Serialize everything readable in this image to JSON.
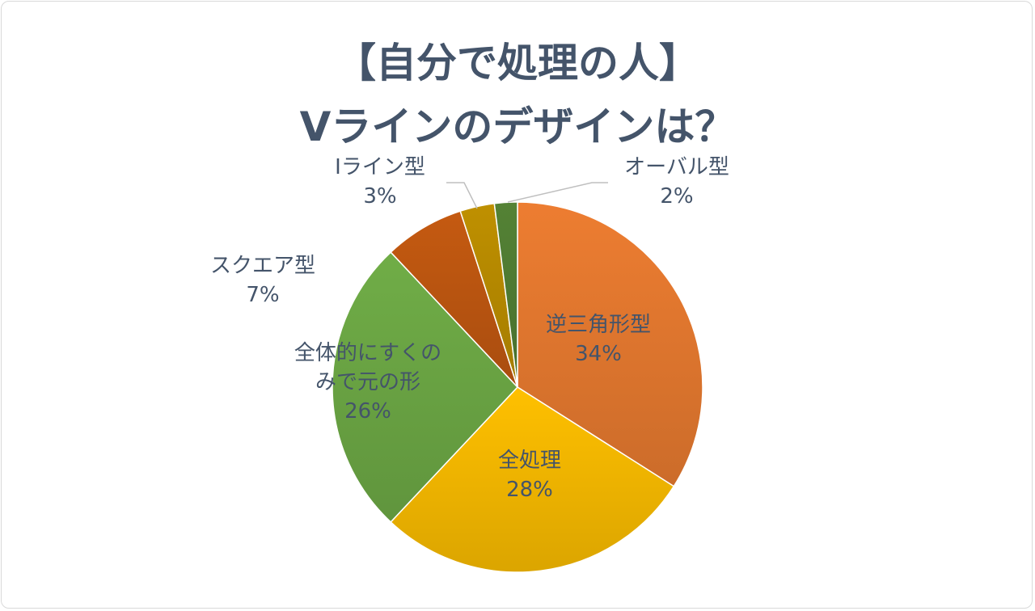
{
  "chart_data": {
    "type": "pie",
    "title_lines": [
      "【自分で処理の人】",
      "Vラインのデザインは？"
    ],
    "slices": [
      {
        "label_lines": [
          "逆三角形型"
        ],
        "value": 34,
        "value_label": "34%",
        "color": "#ed7d31"
      },
      {
        "label_lines": [
          "全処理"
        ],
        "value": 28,
        "value_label": "28%",
        "color": "#ffc000"
      },
      {
        "label_lines": [
          "全体的にすくの",
          "みで元の形"
        ],
        "value": 26,
        "value_label": "26%",
        "color": "#70ad47"
      },
      {
        "label_lines": [
          "スクエア型"
        ],
        "value": 7,
        "value_label": "7%",
        "color": "#c55a11"
      },
      {
        "label_lines": [
          "Iライン型"
        ],
        "value": 3,
        "value_label": "3%",
        "color": "#bf9000"
      },
      {
        "label_lines": [
          "オーバル型"
        ],
        "value": 2,
        "value_label": "2%",
        "color": "#548235"
      }
    ],
    "start_angle": "12 o'clock",
    "direction": "clockwise",
    "legend": "none",
    "data_labels": "category name and percentage"
  }
}
